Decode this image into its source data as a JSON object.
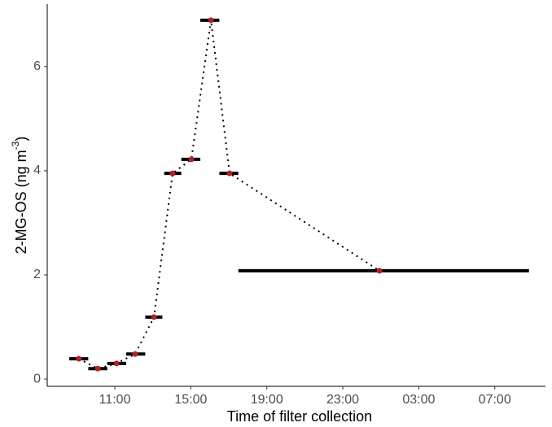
{
  "chart_data": {
    "type": "line",
    "xlabel": "Time of filter collection",
    "ylabel": {
      "text": "2-MG-OS (ng m",
      "superscript": "-3",
      "close": ")"
    },
    "x": [
      9.1,
      10.1,
      11.09,
      12.07,
      13.06,
      14.04,
      15.03,
      16.06,
      17.04,
      24.93
    ],
    "x_start": [
      8.6,
      9.6,
      10.6,
      11.6,
      12.6,
      13.6,
      14.5,
      15.5,
      16.5,
      17.5
    ],
    "x_end": [
      9.6,
      10.6,
      11.6,
      12.6,
      13.5,
      14.5,
      15.5,
      16.5,
      17.5,
      32.8
    ],
    "series": [
      {
        "color": "#b22222",
        "line_color": "#000000",
        "values": [
          0.39,
          0.2,
          0.3,
          0.48,
          1.19,
          3.95,
          4.22,
          6.89,
          3.95,
          2.08
        ]
      }
    ],
    "xlim": [
      7.44,
      33.67
    ],
    "ylim": [
      -0.14,
      7.2
    ],
    "xticks": [
      {
        "value": 11,
        "label": "11:00"
      },
      {
        "value": 15,
        "label": "15:00"
      },
      {
        "value": 19,
        "label": "19:00"
      },
      {
        "value": 23,
        "label": "23:00"
      },
      {
        "value": 27,
        "label": "03:00"
      },
      {
        "value": 31,
        "label": "07:00"
      }
    ],
    "yticks": [
      0,
      2,
      4,
      6
    ],
    "grid": false
  }
}
